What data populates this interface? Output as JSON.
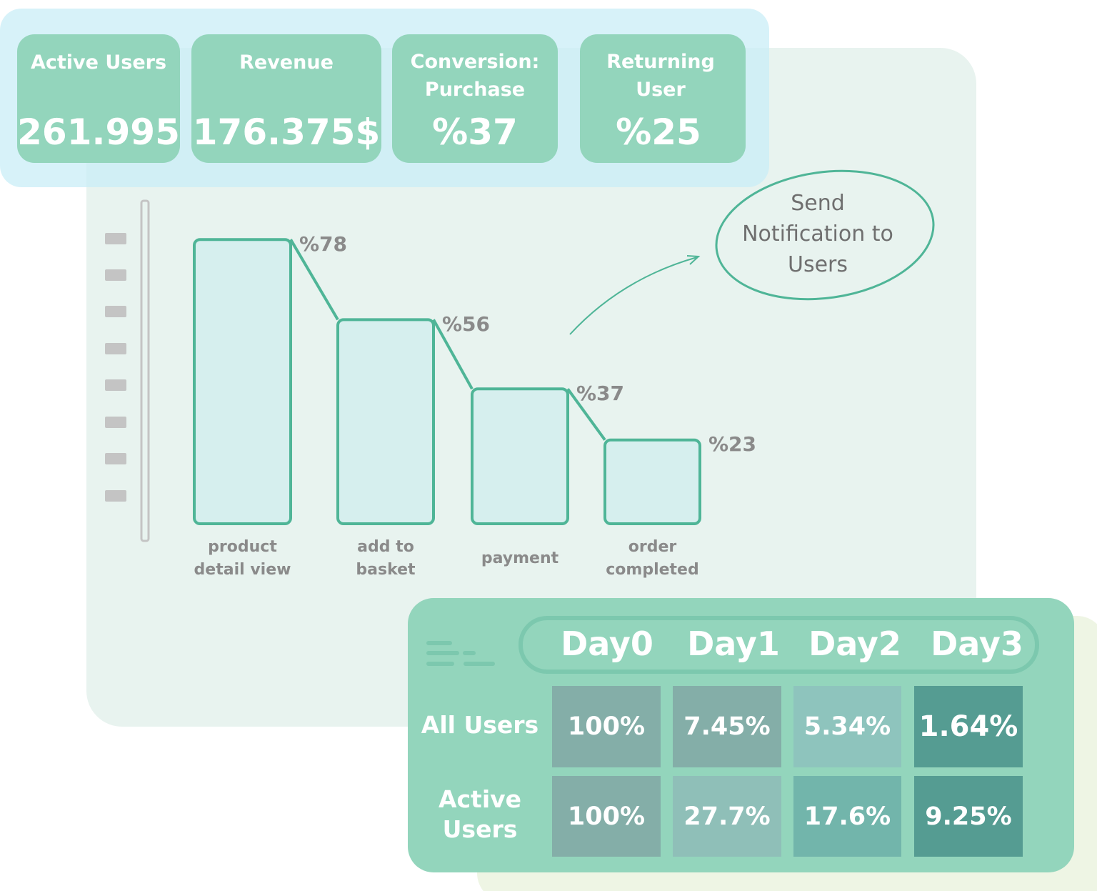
{
  "kpis": [
    {
      "label": "Active Users",
      "value": "261.995"
    },
    {
      "label": "Revenue",
      "value": "176.375$"
    },
    {
      "label": "Conversion: Purchase",
      "value": "%37"
    },
    {
      "label": "Returning User",
      "value": "%25"
    }
  ],
  "chart_data": {
    "type": "bar",
    "categories": [
      "product detail view",
      "add to basket",
      "payment",
      "order completed"
    ],
    "values": [
      78,
      56,
      37,
      23
    ],
    "value_labels": [
      "%78",
      "%56",
      "%37",
      "%23"
    ],
    "color": "#d6efee"
  },
  "annotation": "Send Notification to Users",
  "table": {
    "columns": [
      "Day0",
      "Day1",
      "Day2",
      "Day3"
    ],
    "rows": [
      {
        "label": "All Users",
        "cells": [
          "100%",
          "7.45%",
          "5.34%",
          "1.64%"
        ]
      },
      {
        "label": "Active Users",
        "cells": [
          "100%",
          "27.7%",
          "17.6%",
          "9.25%"
        ]
      }
    ]
  }
}
